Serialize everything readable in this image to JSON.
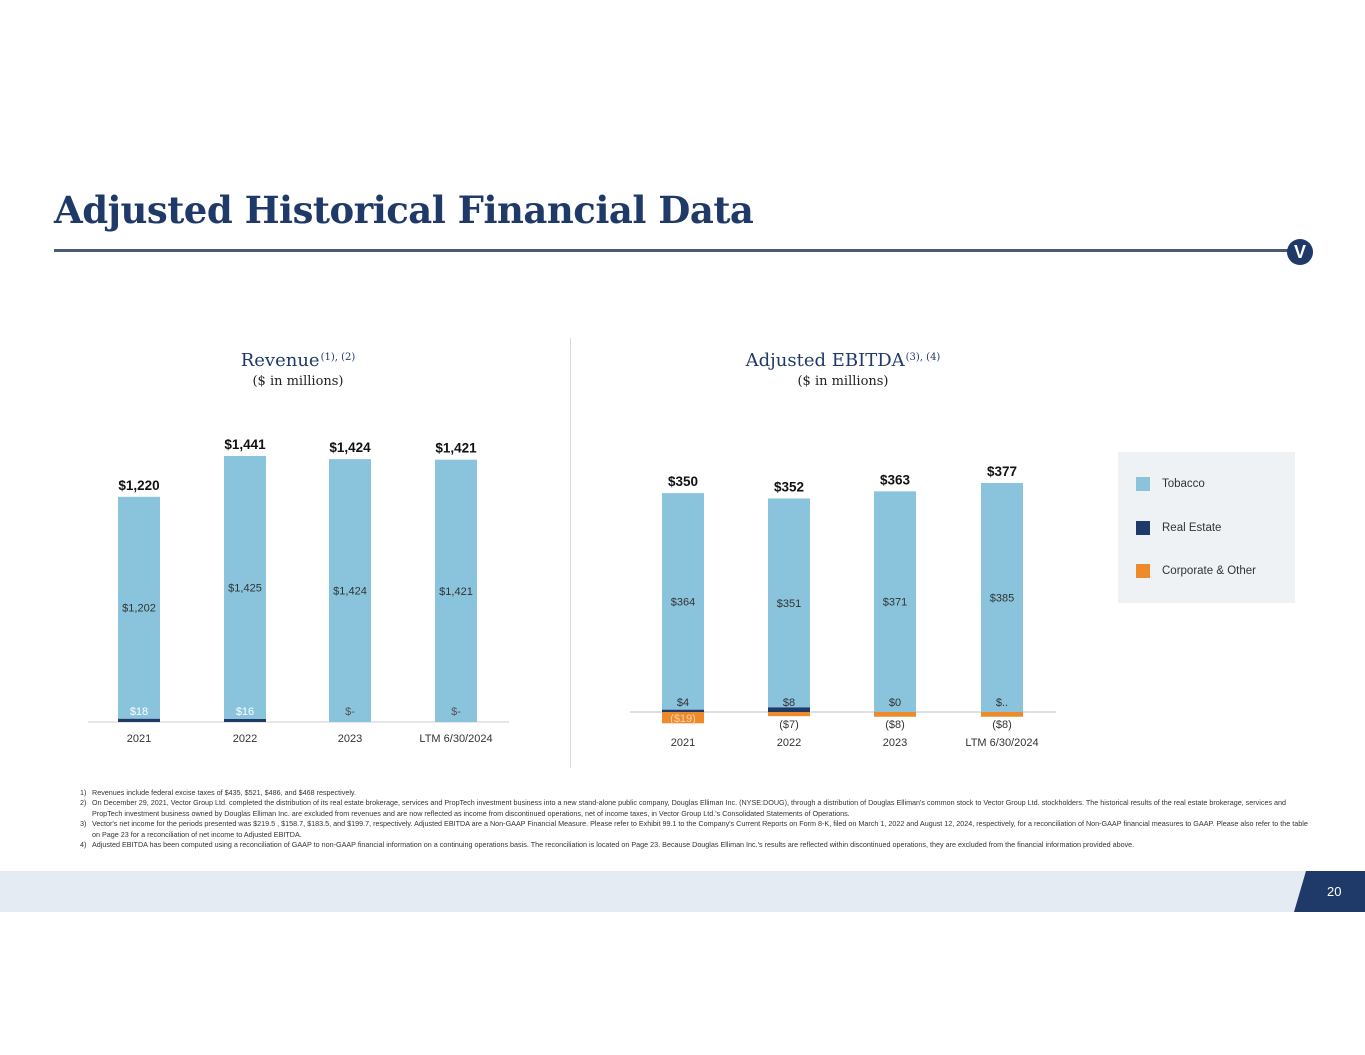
{
  "page": {
    "title": "Adjusted Historical Financial Data",
    "page_number": "20",
    "logo_letter": "V"
  },
  "colors": {
    "navy": "#1f3a68",
    "tobacco": "#89c4dc",
    "real_estate": "#1f3a68",
    "corporate_other": "#ef8a2b"
  },
  "revenue": {
    "title": "Revenue",
    "title_sup": "(1), (2)",
    "subtitle": "($ in millions)"
  },
  "ebitda": {
    "title": "Adjusted EBITDA",
    "title_sup": "(3), (4)",
    "subtitle": "($ in millions)"
  },
  "legend": {
    "items": [
      {
        "label": "Tobacco",
        "color": "#89c4dc"
      },
      {
        "label": "Real Estate",
        "color": "#1f3a68"
      },
      {
        "label": "Corporate & Other",
        "color": "#ef8a2b"
      }
    ]
  },
  "chart_data": [
    {
      "type": "bar",
      "stacked": true,
      "title": "Revenue",
      "categories": [
        "2021",
        "2022",
        "2023",
        "LTM 6/30/2024"
      ],
      "totals": [
        1220,
        1441,
        1424,
        1421
      ],
      "total_labels": [
        "$1,220",
        "$1,441",
        "$1,424",
        "$1,421"
      ],
      "series": [
        {
          "name": "Tobacco",
          "color": "#89c4dc",
          "values": [
            1202,
            1425,
            1424,
            1421
          ],
          "labels": [
            "$1,202",
            "$1,425",
            "$1,424",
            "$1,421"
          ]
        },
        {
          "name": "Real Estate",
          "color": "#1f3a68",
          "values": [
            18,
            16,
            0,
            0
          ],
          "labels": [
            "$18",
            "$16",
            "$-",
            "$-"
          ]
        }
      ],
      "ylim": [
        0,
        1441
      ]
    },
    {
      "type": "bar",
      "stacked": true,
      "title": "Adjusted EBITDA",
      "categories": [
        "2021",
        "2022",
        "2023",
        "LTM 6/30/2024"
      ],
      "totals": [
        350,
        352,
        363,
        377
      ],
      "total_labels": [
        "$350",
        "$352",
        "$363",
        "$377"
      ],
      "series": [
        {
          "name": "Tobacco",
          "color": "#89c4dc",
          "values": [
            364,
            351,
            371,
            385
          ],
          "labels": [
            "$364",
            "$351",
            "$371",
            "$385"
          ]
        },
        {
          "name": "Real Estate",
          "color": "#1f3a68",
          "values": [
            4,
            8,
            0,
            0
          ],
          "labels": [
            "$4",
            "$8",
            "$0",
            "$.."
          ]
        },
        {
          "name": "Corporate & Other",
          "color": "#ef8a2b",
          "values": [
            -19,
            -7,
            -8,
            -8
          ],
          "labels": [
            "($19)",
            "($7)",
            "($8)",
            "($8)"
          ]
        }
      ],
      "ylim": [
        -19,
        385
      ]
    }
  ],
  "footnotes": [
    {
      "num": "1)",
      "text": "Revenues include federal excise taxes of $435, $521, $486, and $468 respectively."
    },
    {
      "num": "2)",
      "text": "On December 29, 2021, Vector Group Ltd. completed the distribution of its real estate brokerage, services and PropTech investment business into a new stand-alone public company, Douglas Elliman Inc. (NYSE:DOUG), through a distribution of Douglas Elliman's common stock to Vector Group Ltd. stockholders. The historical results of the real estate brokerage, services and PropTech investment business owned by Douglas Elliman Inc. are excluded from revenues and are now reflected as income from discontinued operations, net of income taxes, in Vector Group Ltd.'s Consolidated Statements of Operations."
    },
    {
      "num": "3)",
      "text": "Vector's net income for the periods presented was $219.5 , $158.7, $183.5, and $199.7, respectively. Adjusted EBITDA are a Non-GAAP Financial Measure. Please refer to Exhibit 99.1 to the Company's Current Reports on Form 8-K, filed on March 1, 2022 and August 12, 2024, respectively, for a reconciliation of Non-GAAP financial measures to GAAP. Please also refer to the table on Page 23 for a reconciliation of net income to Adjusted EBITDA."
    },
    {
      "num": "4)",
      "text": "Adjusted EBITDA has been computed using a reconciliation of GAAP to non-GAAP financial information on a continuing operations basis. The reconciliation is located on Page 23. Because Douglas Elliman Inc.'s results are reflected within discontinued operations, they are excluded from the financial information provided above."
    }
  ]
}
